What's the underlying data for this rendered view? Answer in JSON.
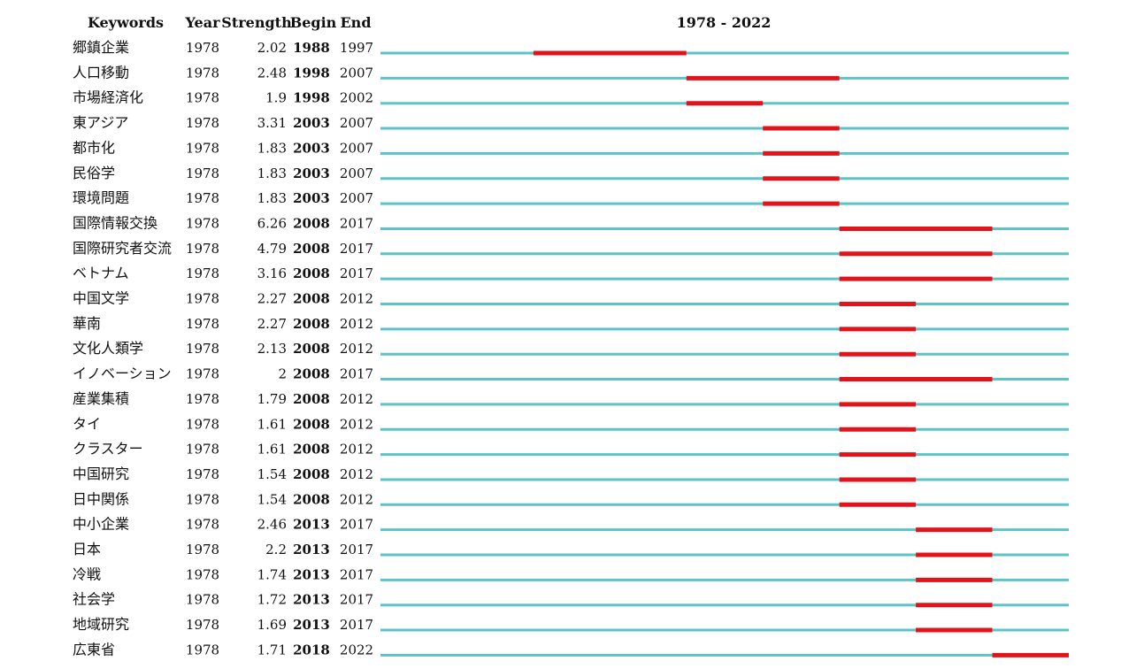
{
  "chart_data": {
    "type": "table",
    "headers": {
      "keyword": "Keywords",
      "year": "Year",
      "strength": "Strength",
      "begin": "Begin",
      "end": "End",
      "range": "1978 - 2022"
    },
    "timeline_start": 1978,
    "timeline_end": 2022,
    "colors": {
      "timeline": "#5ec3c8",
      "burst": "#e0141a"
    },
    "rows": [
      {
        "keyword": "郷鎮企業",
        "year": "1978",
        "strength": "2.02",
        "begin": "1988",
        "end": "1997"
      },
      {
        "keyword": "人口移動",
        "year": "1978",
        "strength": "2.48",
        "begin": "1998",
        "end": "2007"
      },
      {
        "keyword": "市場経済化",
        "year": "1978",
        "strength": "1.9",
        "begin": "1998",
        "end": "2002"
      },
      {
        "keyword": "東アジア",
        "year": "1978",
        "strength": "3.31",
        "begin": "2003",
        "end": "2007"
      },
      {
        "keyword": "都市化",
        "year": "1978",
        "strength": "1.83",
        "begin": "2003",
        "end": "2007"
      },
      {
        "keyword": "民俗学",
        "year": "1978",
        "strength": "1.83",
        "begin": "2003",
        "end": "2007"
      },
      {
        "keyword": "環境問題",
        "year": "1978",
        "strength": "1.83",
        "begin": "2003",
        "end": "2007"
      },
      {
        "keyword": "国際情報交換",
        "year": "1978",
        "strength": "6.26",
        "begin": "2008",
        "end": "2017"
      },
      {
        "keyword": "国際研究者交流",
        "year": "1978",
        "strength": "4.79",
        "begin": "2008",
        "end": "2017"
      },
      {
        "keyword": "ベトナム",
        "year": "1978",
        "strength": "3.16",
        "begin": "2008",
        "end": "2017"
      },
      {
        "keyword": "中国文学",
        "year": "1978",
        "strength": "2.27",
        "begin": "2008",
        "end": "2012"
      },
      {
        "keyword": "華南",
        "year": "1978",
        "strength": "2.27",
        "begin": "2008",
        "end": "2012"
      },
      {
        "keyword": "文化人類学",
        "year": "1978",
        "strength": "2.13",
        "begin": "2008",
        "end": "2012"
      },
      {
        "keyword": "イノベーション",
        "year": "1978",
        "strength": "2",
        "begin": "2008",
        "end": "2017"
      },
      {
        "keyword": "産業集積",
        "year": "1978",
        "strength": "1.79",
        "begin": "2008",
        "end": "2012"
      },
      {
        "keyword": "タイ",
        "year": "1978",
        "strength": "1.61",
        "begin": "2008",
        "end": "2012"
      },
      {
        "keyword": "クラスター",
        "year": "1978",
        "strength": "1.61",
        "begin": "2008",
        "end": "2012"
      },
      {
        "keyword": "中国研究",
        "year": "1978",
        "strength": "1.54",
        "begin": "2008",
        "end": "2012"
      },
      {
        "keyword": "日中関係",
        "year": "1978",
        "strength": "1.54",
        "begin": "2008",
        "end": "2012"
      },
      {
        "keyword": "中小企業",
        "year": "1978",
        "strength": "2.46",
        "begin": "2013",
        "end": "2017"
      },
      {
        "keyword": "日本",
        "year": "1978",
        "strength": "2.2",
        "begin": "2013",
        "end": "2017"
      },
      {
        "keyword": "冷戦",
        "year": "1978",
        "strength": "1.74",
        "begin": "2013",
        "end": "2017"
      },
      {
        "keyword": "社会学",
        "year": "1978",
        "strength": "1.72",
        "begin": "2013",
        "end": "2017"
      },
      {
        "keyword": "地域研究",
        "year": "1978",
        "strength": "1.69",
        "begin": "2013",
        "end": "2017"
      },
      {
        "keyword": "広東省",
        "year": "1978",
        "strength": "1.71",
        "begin": "2018",
        "end": "2022"
      }
    ]
  }
}
